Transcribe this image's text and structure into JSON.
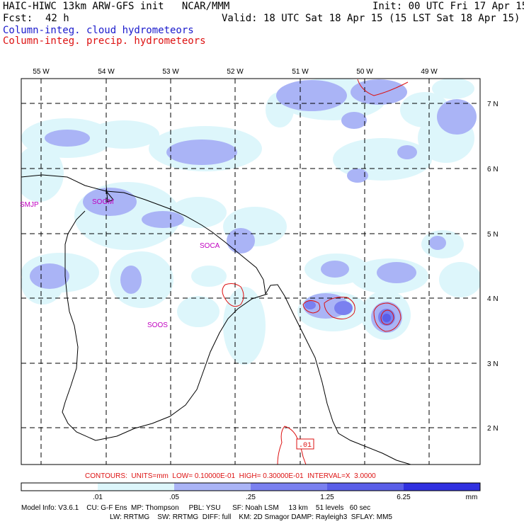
{
  "header": {
    "model_line": "HAIC-HIWC 13km ARW-GFS init   NCAR/MMM",
    "init_line": "Init: 00 UTC Fri 17 Apr 15",
    "fcst_label": "Fcst:",
    "fcst_value": "42 h",
    "valid_line": "Valid: 18 UTC Sat 18 Apr 15 (15 LST Sat 18 Apr 15)",
    "field_cloud": "Column-integ. cloud hydrometeors",
    "field_precip": "Column-integ. precip. hydrometeors"
  },
  "axes": {
    "lon_labels": [
      "55 W",
      "54 W",
      "53 W",
      "52 W",
      "51 W",
      "50 W",
      "49 W"
    ],
    "lat_labels": [
      "7 N",
      "6 N",
      "5 N",
      "4 N",
      "3 N",
      "2 N"
    ]
  },
  "stations": [
    "SMJP",
    "SOGM",
    "SOCA",
    "SOOS"
  ],
  "contour_label": ".01",
  "contours_line": "CONTOURS:  UNITS=mm  LOW= 0.10000E-01  HIGH= 0.30000E-01  INTERVAL=X  3.0000",
  "colorbar": {
    "tick_labels": [
      ".01",
      ".05",
      ".25",
      "1.25",
      "6.25"
    ],
    "units": "mm",
    "colors": [
      "#ffffff",
      "#ddf6fb",
      "#aab4f6",
      "#7a80f0",
      "#5a5ee8",
      "#3030e0"
    ]
  },
  "footer": {
    "line1": "Model Info: V3.6.1    CU: G-F Ens  MP: Thompson     PBL: YSU      SF: Noah LSM     13 km    51 levels   60 sec",
    "line2": "LW: RRTMG    SW: RRTMG  DIFF: full    KM: 2D Smagor DAMP: Rayleigh3  SFLAY: MM5"
  },
  "colors": {
    "cloud_text": "#1a1acc",
    "precip_text": "#dd1111",
    "precip_contour": "#dd1111",
    "station_text": "#c000c0",
    "coast": "#000000"
  }
}
